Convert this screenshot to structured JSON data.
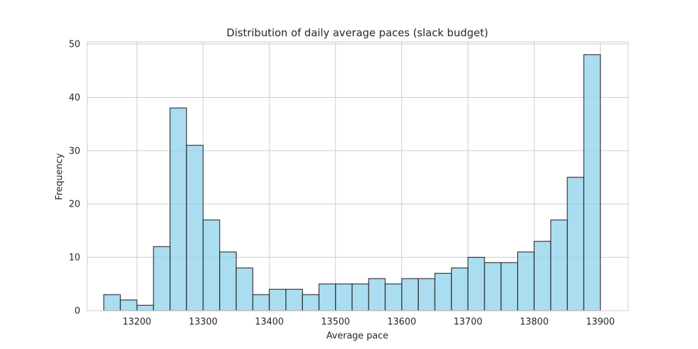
{
  "chart_data": {
    "type": "bar",
    "title": "Distribution of daily average paces (slack budget)",
    "xlabel": "Average pace",
    "ylabel": "Frequency",
    "xlim": [
      13125,
      13942
    ],
    "ylim": [
      0,
      50.4
    ],
    "xticks": [
      13200,
      13300,
      13400,
      13500,
      13600,
      13700,
      13800,
      13900
    ],
    "yticks": [
      0,
      10,
      20,
      30,
      40,
      50
    ],
    "grid": true,
    "bar_color": "#87ceeb",
    "bin_start": 13150,
    "bin_width": 25,
    "values": [
      3,
      2,
      1,
      12,
      38,
      31,
      17,
      11,
      8,
      3,
      4,
      4,
      3,
      5,
      5,
      5,
      6,
      5,
      6,
      6,
      7,
      8,
      10,
      9,
      9,
      11,
      13,
      17,
      25,
      48
    ]
  }
}
